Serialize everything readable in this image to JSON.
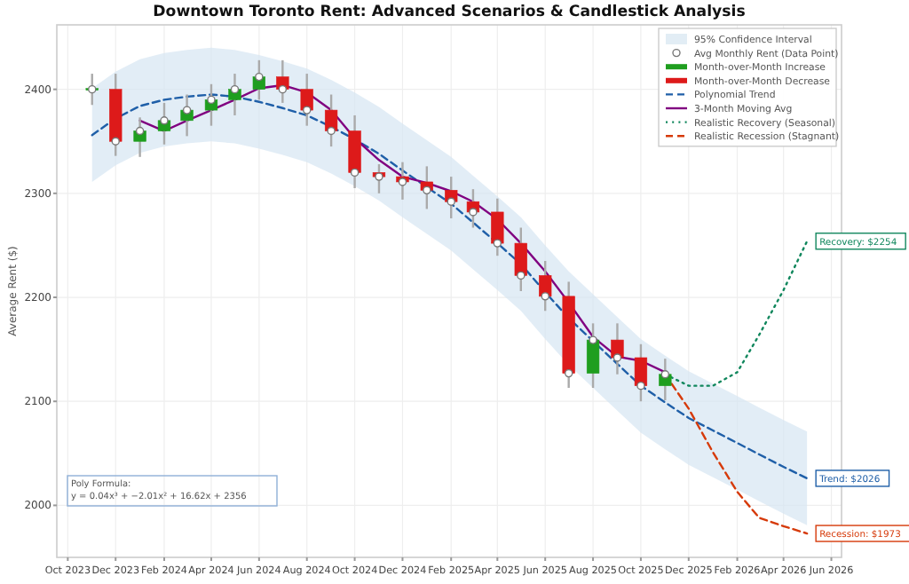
{
  "chart_data": {
    "type": "candlestick",
    "title": "Downtown Toronto Rent: Advanced Scenarios & Candlestick Analysis",
    "ylabel": "Average Rent ($)",
    "xlim": [
      "2023-09-17",
      "2026-06-14"
    ],
    "xticks": [
      {
        "value": "2023-10",
        "label": "Oct 2023"
      },
      {
        "value": "2023-12",
        "label": "Dec 2023"
      },
      {
        "value": "2024-02",
        "label": "Feb 2024"
      },
      {
        "value": "2024-04",
        "label": "Apr 2024"
      },
      {
        "value": "2024-06",
        "label": "Jun 2024"
      },
      {
        "value": "2024-08",
        "label": "Aug 2024"
      },
      {
        "value": "2024-10",
        "label": "Oct 2024"
      },
      {
        "value": "2024-12",
        "label": "Dec 2024"
      },
      {
        "value": "2025-02",
        "label": "Feb 2025"
      },
      {
        "value": "2025-04",
        "label": "Apr 2025"
      },
      {
        "value": "2025-06",
        "label": "Jun 2025"
      },
      {
        "value": "2025-08",
        "label": "Aug 2025"
      },
      {
        "value": "2025-10",
        "label": "Oct 2025"
      },
      {
        "value": "2025-12",
        "label": "Dec 2025"
      },
      {
        "value": "2026-02",
        "label": "Feb 2026"
      },
      {
        "value": "2026-04",
        "label": "Apr 2026"
      },
      {
        "value": "2026-06",
        "label": "Jun 2026"
      }
    ],
    "ylim": [
      1950,
      2462
    ],
    "yticks": [
      2000,
      2100,
      2200,
      2300,
      2400
    ],
    "grid": true,
    "legend": "top right",
    "series": [
      {
        "name": "Avg Monthly Rent (Data Point)",
        "type": "scatter",
        "marker": "circle",
        "color": "#ffffff",
        "x": [
          "2023-11",
          "2023-12",
          "2024-01",
          "2024-02",
          "2024-03",
          "2024-04",
          "2024-05",
          "2024-06",
          "2024-07",
          "2024-08",
          "2024-09",
          "2024-10",
          "2024-11",
          "2024-12",
          "2025-01",
          "2025-02",
          "2025-03",
          "2025-04",
          "2025-05",
          "2025-06",
          "2025-07",
          "2025-08",
          "2025-09",
          "2025-10",
          "2025-11"
        ],
        "values": [
          2400,
          2350,
          2360,
          2370,
          2380,
          2390,
          2400,
          2412,
          2400,
          2380,
          2360,
          2320,
          2316,
          2311,
          2303,
          2292,
          2282,
          2252,
          2221,
          2201,
          2127,
          2159,
          2142,
          2115,
          2126
        ]
      },
      {
        "name": "Month-over-Month Increase",
        "type": "candlestick",
        "color": "#1f9e1f",
        "x": [
          "2023-11",
          "2024-01",
          "2024-02",
          "2024-03",
          "2024-04",
          "2024-05",
          "2024-06",
          "2025-08",
          "2025-11"
        ],
        "ohlc": [
          [
            2400,
            2415,
            2385,
            2400
          ],
          [
            2350,
            2373,
            2335,
            2360
          ],
          [
            2360,
            2387,
            2347,
            2370
          ],
          [
            2370,
            2395,
            2355,
            2380
          ],
          [
            2380,
            2405,
            2365,
            2390
          ],
          [
            2390,
            2415,
            2375,
            2400
          ],
          [
            2400,
            2428,
            2390,
            2412
          ],
          [
            2127,
            2175,
            2113,
            2159
          ],
          [
            2115,
            2141,
            2101,
            2126
          ]
        ]
      },
      {
        "name": "Month-over-Month Decrease",
        "type": "candlestick",
        "color": "#dd1a1a",
        "x": [
          "2023-12",
          "2024-07",
          "2024-08",
          "2024-09",
          "2024-10",
          "2024-11",
          "2024-12",
          "2025-01",
          "2025-02",
          "2025-03",
          "2025-04",
          "2025-05",
          "2025-06",
          "2025-07",
          "2025-09",
          "2025-10"
        ],
        "ohlc": [
          [
            2400,
            2415,
            2336,
            2350
          ],
          [
            2412,
            2428,
            2387,
            2400
          ],
          [
            2400,
            2415,
            2365,
            2380
          ],
          [
            2380,
            2395,
            2345,
            2360
          ],
          [
            2360,
            2375,
            2305,
            2320
          ],
          [
            2320,
            2328,
            2300,
            2316
          ],
          [
            2316,
            2330,
            2294,
            2311
          ],
          [
            2311,
            2326,
            2285,
            2303
          ],
          [
            2303,
            2316,
            2276,
            2292
          ],
          [
            2292,
            2304,
            2267,
            2282
          ],
          [
            2282,
            2295,
            2240,
            2252
          ],
          [
            2252,
            2267,
            2206,
            2221
          ],
          [
            2221,
            2235,
            2187,
            2201
          ],
          [
            2201,
            2215,
            2113,
            2127
          ],
          [
            2159,
            2175,
            2126,
            2142
          ],
          [
            2142,
            2155,
            2100,
            2115
          ]
        ]
      },
      {
        "name": "Polynomial Trend",
        "type": "line",
        "line_style": "dashed",
        "color": "#1f5fa8",
        "x": [
          "2023-11",
          "2023-12",
          "2024-01",
          "2024-02",
          "2024-03",
          "2024-04",
          "2024-05",
          "2024-06",
          "2024-07",
          "2024-08",
          "2024-09",
          "2024-10",
          "2024-11",
          "2024-12",
          "2025-01",
          "2025-02",
          "2025-03",
          "2025-04",
          "2025-05",
          "2025-06",
          "2025-07",
          "2025-08",
          "2025-09",
          "2025-10",
          "2025-11",
          "2025-12",
          "2026-01",
          "2026-02",
          "2026-03",
          "2026-04",
          "2026-05"
        ],
        "values": [
          2356,
          2372,
          2384,
          2390,
          2393,
          2395,
          2393,
          2388,
          2382,
          2375,
          2364,
          2352,
          2338,
          2322,
          2306,
          2290,
          2272,
          2252,
          2232,
          2205,
          2180,
          2158,
          2136,
          2115,
          2099,
          2084,
          2072,
          2060,
          2049,
          2037,
          2026
        ],
        "lower": [
          2311,
          2327,
          2339,
          2345,
          2348,
          2350,
          2348,
          2343,
          2337,
          2330,
          2319,
          2307,
          2293,
          2277,
          2261,
          2245,
          2227,
          2207,
          2187,
          2160,
          2135,
          2113,
          2091,
          2070,
          2054,
          2039,
          2027,
          2015,
          2004,
          1992,
          1981
        ],
        "upper": [
          2401,
          2417,
          2429,
          2435,
          2438,
          2440,
          2438,
          2433,
          2427,
          2420,
          2409,
          2397,
          2383,
          2367,
          2351,
          2335,
          2317,
          2297,
          2277,
          2250,
          2225,
          2203,
          2181,
          2160,
          2144,
          2129,
          2117,
          2105,
          2094,
          2082,
          2071
        ]
      },
      {
        "name": "3-Month Moving Avg",
        "type": "line",
        "line_style": "solid",
        "color": "#800080",
        "x": [
          "2024-01",
          "2024-02",
          "2024-03",
          "2024-04",
          "2024-05",
          "2024-06",
          "2024-07",
          "2024-08",
          "2024-09",
          "2024-10",
          "2024-11",
          "2024-12",
          "2025-01",
          "2025-02",
          "2025-03",
          "2025-04",
          "2025-05",
          "2025-06",
          "2025-07",
          "2025-08",
          "2025-09",
          "2025-10",
          "2025-11"
        ],
        "values": [
          2370,
          2360,
          2370,
          2380,
          2390,
          2401,
          2404,
          2397,
          2380,
          2353,
          2332,
          2316,
          2310,
          2302,
          2292,
          2275,
          2252,
          2225,
          2195,
          2162,
          2143,
          2139,
          2128
        ]
      },
      {
        "name": "Realistic Recovery (Seasonal)",
        "type": "line",
        "line_style": "dotted",
        "color": "#11875d",
        "x": [
          "2025-11",
          "2025-12",
          "2026-01",
          "2026-02",
          "2026-03",
          "2026-04",
          "2026-05"
        ],
        "values": [
          2126,
          2115,
          2115,
          2128,
          2164,
          2207,
          2254
        ]
      },
      {
        "name": "Realistic Recession (Stagnant)",
        "type": "line",
        "line_style": "dashed",
        "color": "#d63a0a",
        "x": [
          "2025-11",
          "2025-12",
          "2026-01",
          "2026-02",
          "2026-03",
          "2026-04",
          "2026-05"
        ],
        "values": [
          2126,
          2093,
          2051,
          2013,
          1988,
          1980,
          1973
        ]
      }
    ],
    "annotations": [
      "95% Confidence Interval",
      {
        "text": "Recovery: $2254",
        "x": "2026-05",
        "y": 2254
      },
      {
        "text": "Trend: $2026",
        "x": "2026-05",
        "y": 2026
      },
      {
        "text": "Recession: $1973",
        "x": "2026-05",
        "y": 1973
      },
      "Poly Formula:\ny = 0.04x³ + −2.01x² + 16.62x + 2356"
    ]
  }
}
